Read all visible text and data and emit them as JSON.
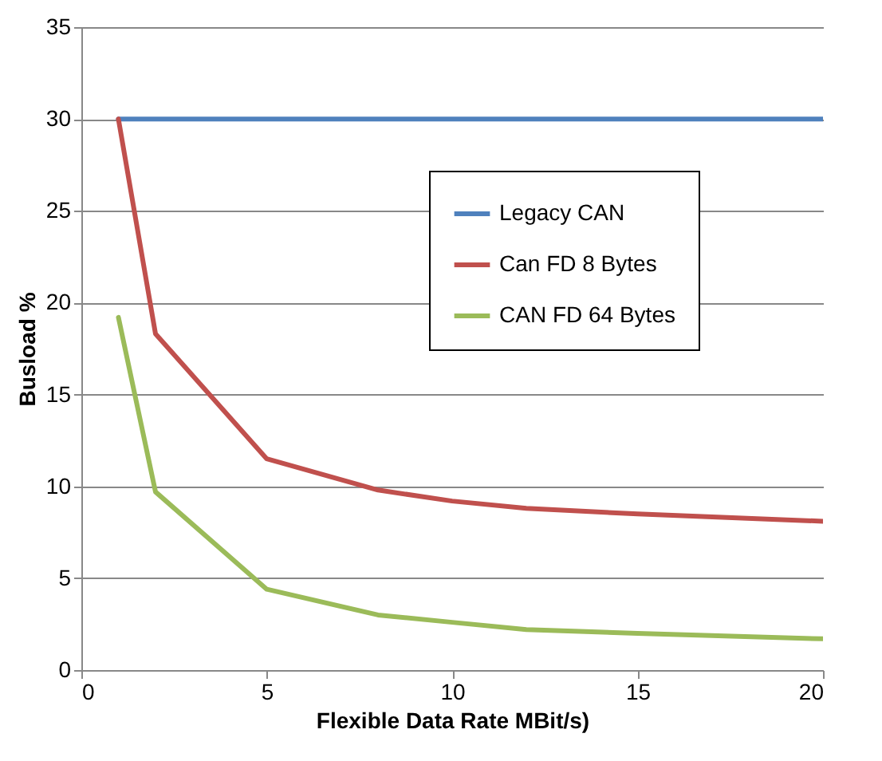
{
  "chart_data": {
    "type": "line",
    "xlabel": "Flexible Data Rate MBit/s)",
    "ylabel": "Busload %",
    "xlim": [
      0,
      20
    ],
    "xticks": [
      0,
      5,
      10,
      15,
      20
    ],
    "ylim": [
      0,
      35
    ],
    "yticks": [
      0,
      5,
      10,
      15,
      20,
      25,
      30,
      35
    ],
    "grid": "y",
    "legend": "top right",
    "line_style": "solid",
    "marker": "none",
    "series": [
      {
        "name": "Legacy CAN",
        "color": "#4f81bd",
        "x": [
          1,
          2,
          5,
          8,
          10,
          12,
          15,
          20
        ],
        "values": [
          30,
          30,
          30,
          30,
          30,
          30,
          30,
          30
        ]
      },
      {
        "name": "Can FD 8 Bytes",
        "color": "#c0504d",
        "x": [
          1,
          2,
          5,
          8,
          10,
          12,
          15,
          20
        ],
        "values": [
          30,
          18.3,
          11.5,
          9.8,
          9.2,
          8.8,
          8.5,
          8.1
        ]
      },
      {
        "name": "CAN FD 64 Bytes",
        "color": "#9bbb59",
        "x": [
          1,
          2,
          5,
          8,
          10,
          12,
          15,
          20
        ],
        "values": [
          19.2,
          9.7,
          4.4,
          3.0,
          2.6,
          2.2,
          2.0,
          1.7
        ]
      }
    ]
  }
}
